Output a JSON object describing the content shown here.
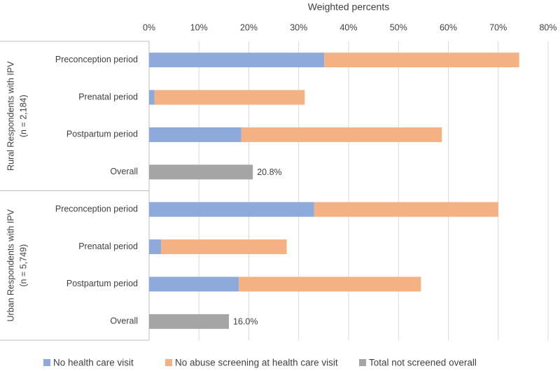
{
  "chart_data": {
    "type": "stacked-bar-horizontal",
    "xlabel": "Weighted percents",
    "xlim": [
      0,
      80
    ],
    "xticks": [
      {
        "value": 0,
        "label": "0%"
      },
      {
        "value": 10,
        "label": "10%"
      },
      {
        "value": 20,
        "label": "20%"
      },
      {
        "value": 30,
        "label": "30%"
      },
      {
        "value": 40,
        "label": "40%"
      },
      {
        "value": 50,
        "label": "50%"
      },
      {
        "value": 60,
        "label": "60%"
      },
      {
        "value": 70,
        "label": "70%"
      },
      {
        "value": 80,
        "label": "80%"
      }
    ],
    "grid": true,
    "legend": "bottom",
    "groups": [
      {
        "name": "Rural Respondents with IPV",
        "note": "(n = 2,184)"
      },
      {
        "name": "Urban Respondents with IPV",
        "note": "(n = 5,749)"
      }
    ],
    "categories": [
      "Preconception period",
      "Prenatal period",
      "Postpartum period",
      "Overall",
      "Preconception period",
      "Prenatal period",
      "Postpartum period",
      "Overall"
    ],
    "series": [
      {
        "name": "No health care visit",
        "color": "#8eaadb",
        "values": [
          35.1,
          1.1,
          18.5,
          null,
          33.1,
          2.4,
          18.0,
          null
        ]
      },
      {
        "name": "No abuse screening at health care visit",
        "color": "#f4b183",
        "values": [
          39.1,
          30.1,
          40.2,
          null,
          36.9,
          25.2,
          36.5,
          null
        ]
      },
      {
        "name": "Total not screened overall",
        "color": "#a5a5a5",
        "values": [
          null,
          null,
          null,
          20.8,
          null,
          null,
          null,
          16.0
        ],
        "value_labels": [
          null,
          null,
          null,
          "20.8%",
          null,
          null,
          null,
          "16.0%"
        ]
      }
    ]
  }
}
